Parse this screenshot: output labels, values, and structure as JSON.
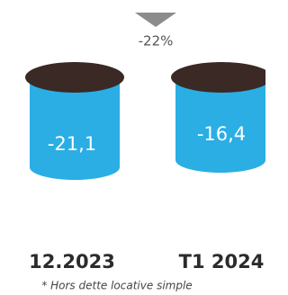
{
  "change_label": "-22%",
  "items": [
    {
      "value_label": "-21,1",
      "period": "12.2023"
    },
    {
      "value_label": "-16,4",
      "period": "T1 2024"
    }
  ],
  "footnote": "* Hors dette locative simple"
}
